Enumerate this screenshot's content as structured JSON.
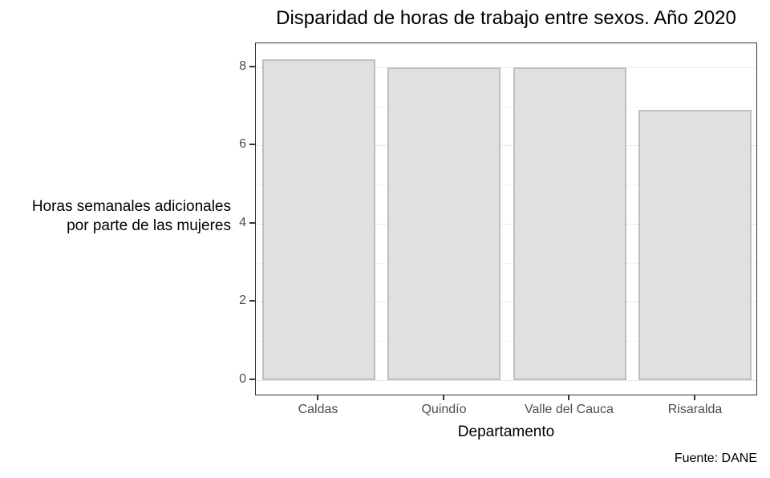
{
  "title": "Disparidad de horas de trabajo entre sexos. Año 2020",
  "chart_data": {
    "type": "bar",
    "categories": [
      "Caldas",
      "Quindío",
      "Valle del Cauca",
      "Risaralda"
    ],
    "values": [
      8.2,
      8.0,
      8.0,
      6.9
    ],
    "title": "Disparidad de horas de trabajo entre sexos. Año 2020",
    "xlabel": "Departamento",
    "ylabel": "Horas semanales adicionales por parte de las mujeres",
    "ylabel_lines": [
      "Horas semanales adicionales",
      "por parte de las mujeres"
    ],
    "caption": "Fuente: DANE",
    "ylim": [
      -0.41,
      8.61
    ],
    "yticks": [
      0,
      2,
      4,
      6,
      8
    ],
    "yticks_minor": [
      1,
      3,
      5,
      7
    ],
    "grid": "on",
    "legend": "none",
    "bar_fill": "#e0e0e0",
    "bar_border": "#bebebe",
    "grid_major_color": "#e8e8e8",
    "grid_minor_color": "#f3f3f3",
    "panel_border_color": "#333333",
    "tick_label_color": "#4d4d4d"
  }
}
